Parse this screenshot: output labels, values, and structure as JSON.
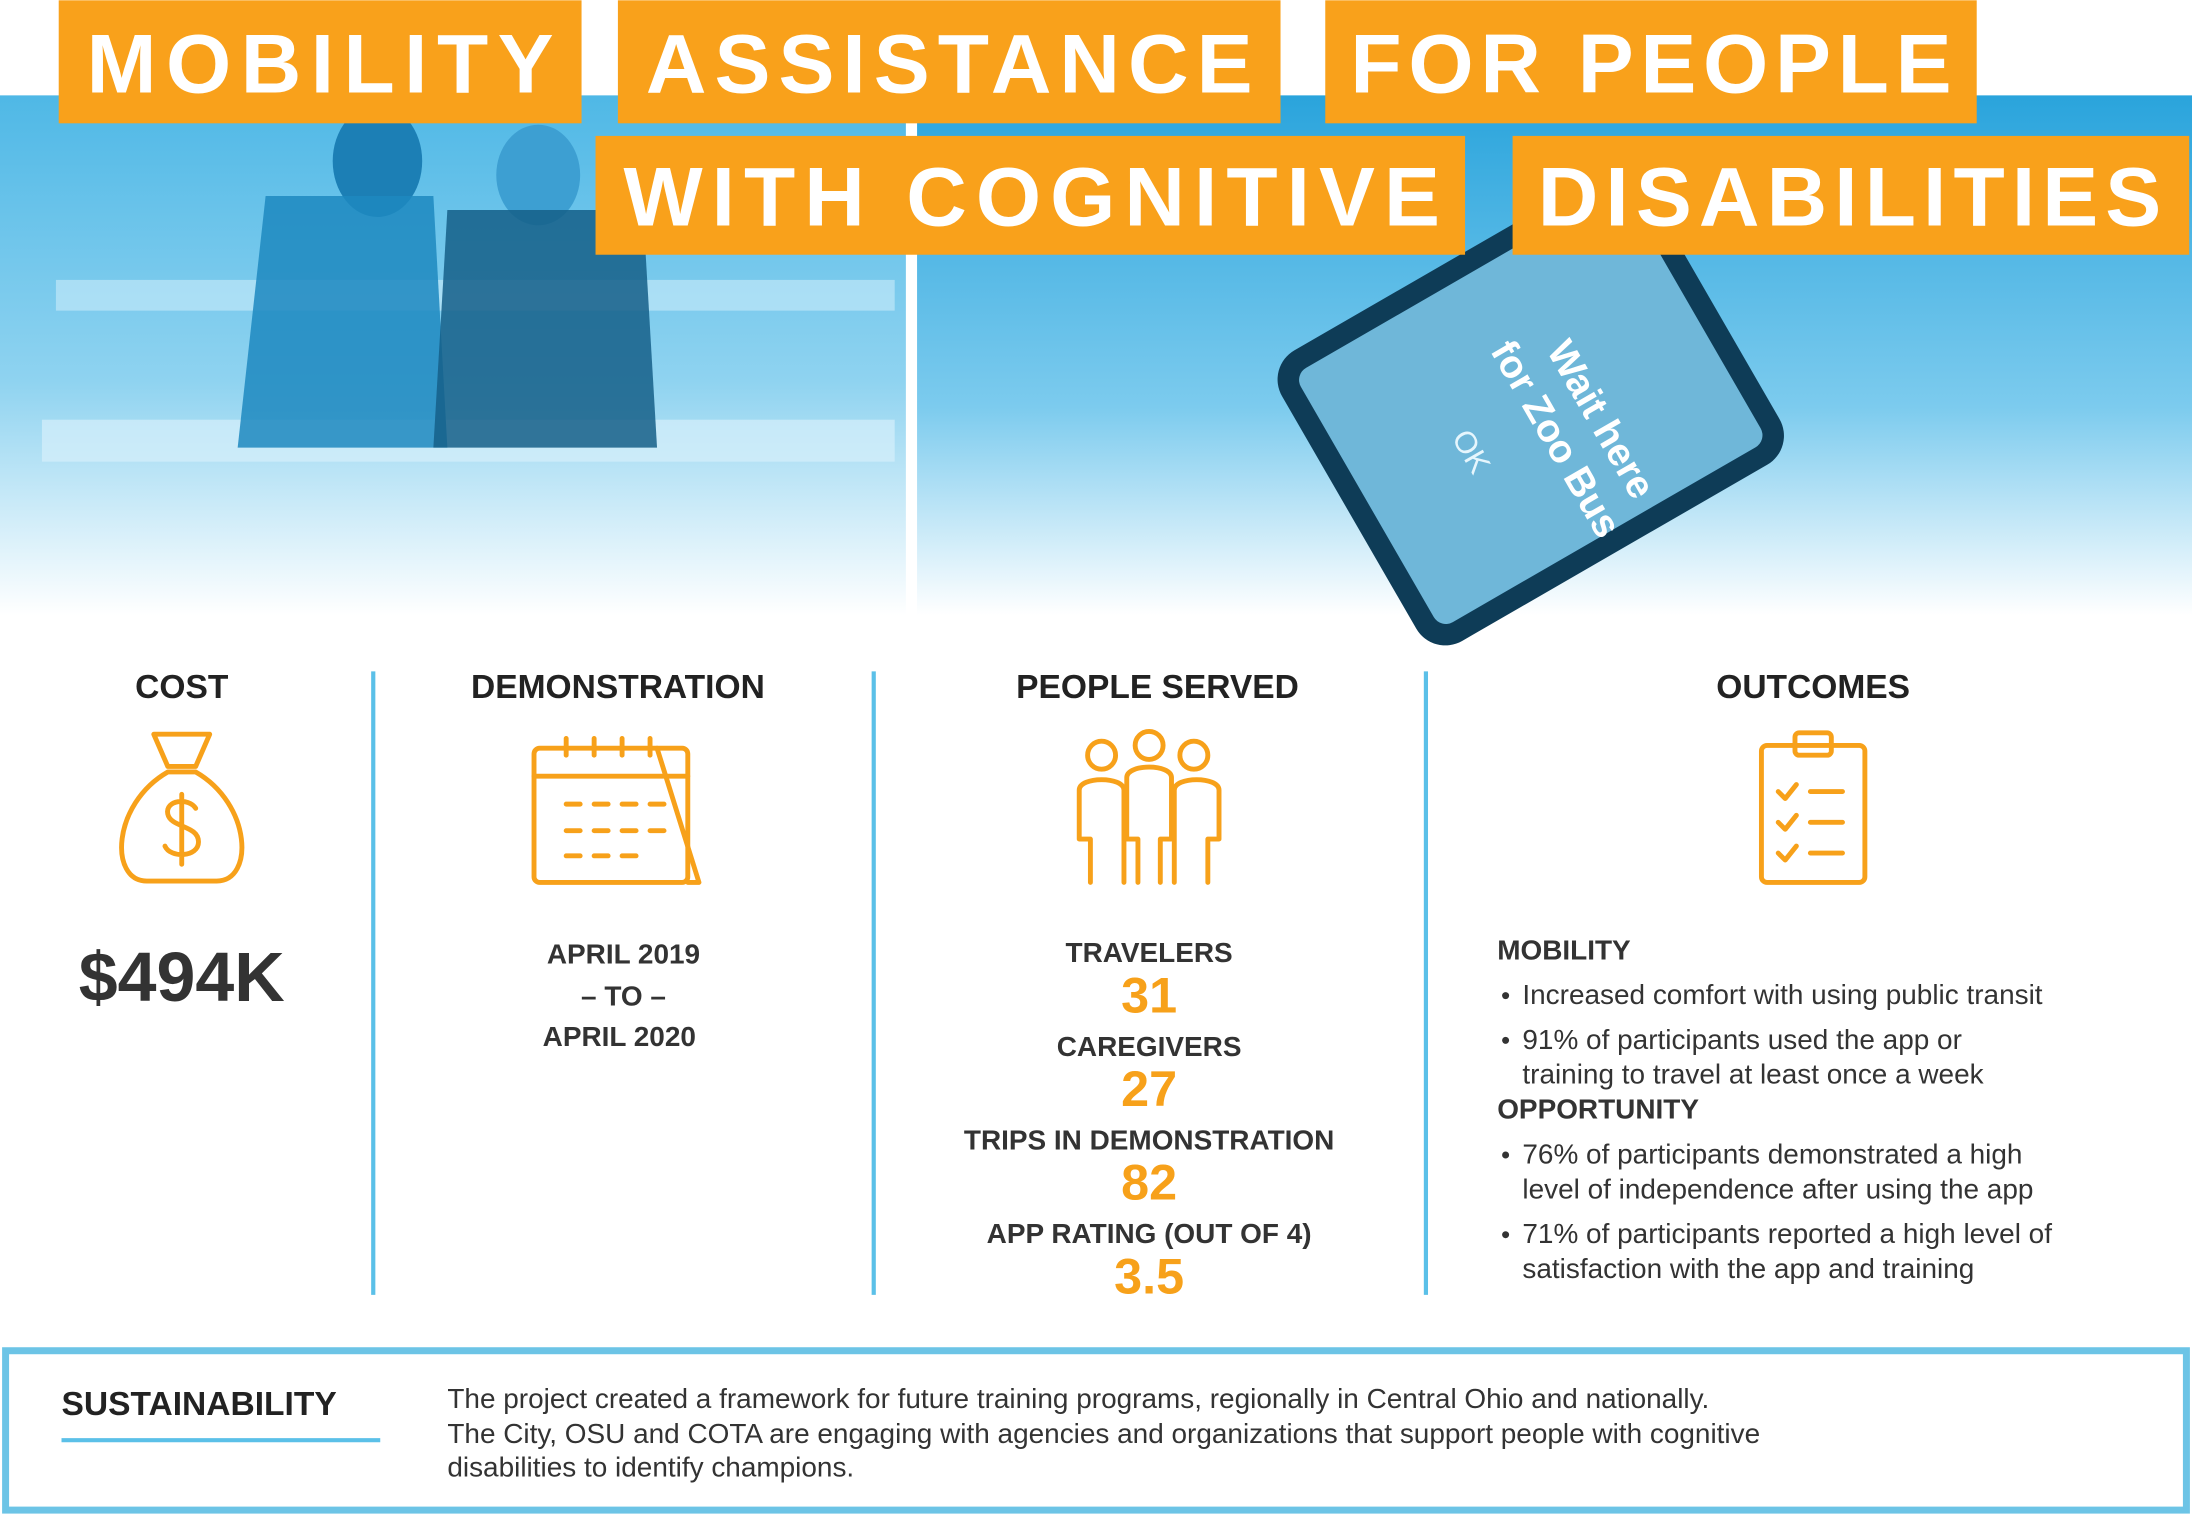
{
  "header": {
    "title_words": [
      "MOBILITY",
      "ASSISTANCE",
      "FOR PEOPLE",
      "WITH COGNITIVE",
      "DISABILITIES"
    ]
  },
  "photo": {
    "phone_text": [
      "Wait here",
      "for Zoo Bus",
      "OK"
    ]
  },
  "cost": {
    "heading": "COST",
    "value": "$494K"
  },
  "demonstration": {
    "heading": "DEMONSTRATION",
    "start": "APRIL 2019",
    "separator": "– TO –",
    "end": "APRIL 2020"
  },
  "people_served": {
    "heading": "PEOPLE SERVED",
    "items": [
      {
        "label": "TRAVELERS",
        "value": "31"
      },
      {
        "label": "CAREGIVERS",
        "value": "27"
      },
      {
        "label": "TRIPS IN DEMONSTRATION",
        "value": "82"
      },
      {
        "label": "APP RATING (OUT OF 4)",
        "value": "3.5"
      }
    ]
  },
  "outcomes": {
    "heading": "OUTCOMES",
    "groups": [
      {
        "title": "MOBILITY",
        "bullets": [
          [
            "Increased comfort with using public transit"
          ],
          [
            "91% of participants used the app or",
            "training to travel at least once a week"
          ]
        ]
      },
      {
        "title": "OPPORTUNITY",
        "bullets": [
          [
            "76% of participants demonstrated a high",
            "level of independence after using the app"
          ],
          [
            "71% of participants reported a high level of",
            "satisfaction with the app and training"
          ]
        ]
      }
    ]
  },
  "sustainability": {
    "heading": "SUSTAINABILITY",
    "lines": [
      "The project created a framework for future training programs, regionally in Central Ohio and nationally.",
      "The City, OSU and COTA are engaging with agencies and organizations that support people with cognitive",
      "disabilities to identify champions."
    ]
  }
}
